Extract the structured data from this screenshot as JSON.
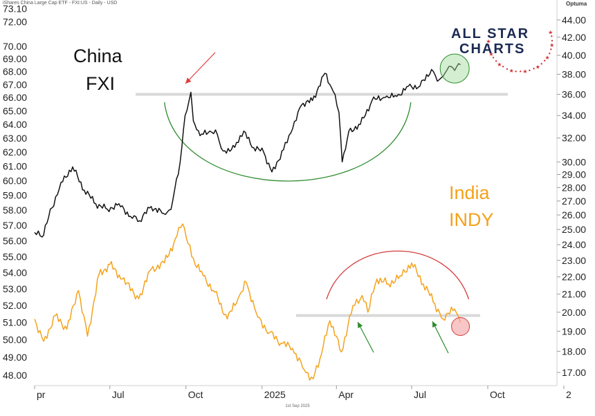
{
  "header": {
    "text": "iShares China Large Cap ETF - FXI:US - Daily - USD"
  },
  "footer": {
    "date": "1st Sep 2025"
  },
  "optuma": {
    "label": "Optuma"
  },
  "brand": {
    "line1": "ALL STAR",
    "line2": "CHARTS"
  },
  "labels": {
    "china_1": "China",
    "china_2": "FXI",
    "india_1": "India",
    "india_2": "INDY"
  },
  "colors": {
    "fxi": "#111111",
    "indy": "#f4a21b",
    "arc_green": "#2e8b2e",
    "arc_red": "#d43a3a",
    "level_line": "#d9d9d9",
    "arrow_red": "#e23b3b",
    "arrow_green": "#2e8b2e",
    "circle_green": "#9ed99a",
    "circle_red": "#f2a0a0",
    "brand_stars": "#d32f2f"
  },
  "chart_data": {
    "type": "line",
    "x_axis": {
      "ticks": [
        "pr",
        "Jul",
        "Oct",
        "2025",
        "Apr",
        "Jul",
        "Oct",
        "2"
      ],
      "range": [
        "2024-04-01",
        "2025-10-31"
      ]
    },
    "left_axis": {
      "label": "",
      "ticks": [
        "73.10",
        "72.00",
        "70.00",
        "69.00",
        "68.00",
        "67.00",
        "66.00",
        "65.00",
        "64.00",
        "63.00",
        "62.00",
        "61.00",
        "60.00",
        "59.00",
        "58.00",
        "57.00",
        "56.00",
        "55.00",
        "54.00",
        "53.00",
        "52.00",
        "51.00",
        "50.00",
        "49.00",
        "48.00"
      ]
    },
    "right_axis": {
      "label": "",
      "ticks": [
        "44.00",
        "42.00",
        "40.00",
        "38.00",
        "36.00",
        "34.00",
        "32.00",
        "30.00",
        "29.00",
        "28.00",
        "27.00",
        "26.00",
        "25.00",
        "24.00",
        "23.00",
        "22.00",
        "21.00",
        "20.00",
        "19.00",
        "18.00",
        "17.00"
      ]
    },
    "series": [
      {
        "name": "FXI",
        "axis": "right",
        "points": [
          [
            "2024-04-01",
            24.8
          ],
          [
            "2024-04-10",
            24.5
          ],
          [
            "2024-04-22",
            26.5
          ],
          [
            "2024-05-03",
            28.4
          ],
          [
            "2024-05-17",
            29.6
          ],
          [
            "2024-05-31",
            27.8
          ],
          [
            "2024-06-14",
            26.8
          ],
          [
            "2024-06-28",
            26.4
          ],
          [
            "2024-07-12",
            26.8
          ],
          [
            "2024-07-26",
            25.9
          ],
          [
            "2024-08-06",
            25.6
          ],
          [
            "2024-08-20",
            26.6
          ],
          [
            "2024-09-04",
            26.1
          ],
          [
            "2024-09-13",
            26.4
          ],
          [
            "2024-09-24",
            30.0
          ],
          [
            "2024-09-30",
            34.0
          ],
          [
            "2024-10-07",
            36.2
          ],
          [
            "2024-10-10",
            33.5
          ],
          [
            "2024-10-18",
            32.2
          ],
          [
            "2024-10-30",
            32.6
          ],
          [
            "2024-11-08",
            32.3
          ],
          [
            "2024-11-15",
            30.9
          ],
          [
            "2024-11-29",
            31.2
          ],
          [
            "2024-12-10",
            32.6
          ],
          [
            "2024-12-20",
            31.2
          ],
          [
            "2025-01-03",
            30.8
          ],
          [
            "2025-01-13",
            29.2
          ],
          [
            "2025-01-27",
            31.0
          ],
          [
            "2025-02-07",
            32.8
          ],
          [
            "2025-02-18",
            35.0
          ],
          [
            "2025-03-03",
            35.4
          ],
          [
            "2025-03-18",
            38.1
          ],
          [
            "2025-03-28",
            36.3
          ],
          [
            "2025-04-04",
            34.3
          ],
          [
            "2025-04-08",
            30.0
          ],
          [
            "2025-04-16",
            32.6
          ],
          [
            "2025-04-30",
            33.2
          ],
          [
            "2025-05-14",
            35.4
          ],
          [
            "2025-05-30",
            35.7
          ],
          [
            "2025-06-13",
            35.8
          ],
          [
            "2025-06-27",
            36.8
          ],
          [
            "2025-07-11",
            36.8
          ],
          [
            "2025-07-25",
            38.5
          ],
          [
            "2025-08-01",
            37.3
          ],
          [
            "2025-08-08",
            37.8
          ],
          [
            "2025-08-15",
            38.8
          ],
          [
            "2025-08-22",
            38.4
          ],
          [
            "2025-08-29",
            39.0
          ]
        ]
      },
      {
        "name": "INDY",
        "axis": "left",
        "points": [
          [
            "2024-04-01",
            51.2
          ],
          [
            "2024-04-12",
            49.9
          ],
          [
            "2024-04-26",
            51.4
          ],
          [
            "2024-05-10",
            50.6
          ],
          [
            "2024-05-24",
            52.9
          ],
          [
            "2024-06-04",
            50.2
          ],
          [
            "2024-06-18",
            53.9
          ],
          [
            "2024-07-01",
            54.5
          ],
          [
            "2024-07-16",
            53.6
          ],
          [
            "2024-08-05",
            52.4
          ],
          [
            "2024-08-20",
            54.2
          ],
          [
            "2024-09-05",
            54.6
          ],
          [
            "2024-09-20",
            56.3
          ],
          [
            "2024-09-27",
            57.1
          ],
          [
            "2024-10-08",
            55.0
          ],
          [
            "2024-10-22",
            53.8
          ],
          [
            "2024-11-05",
            52.8
          ],
          [
            "2024-11-20",
            51.2
          ],
          [
            "2024-12-03",
            52.4
          ],
          [
            "2024-12-13",
            53.4
          ],
          [
            "2024-12-27",
            51.3
          ],
          [
            "2025-01-10",
            50.4
          ],
          [
            "2025-01-24",
            49.8
          ],
          [
            "2025-02-07",
            49.5
          ],
          [
            "2025-02-21",
            48.3
          ],
          [
            "2025-03-04",
            47.8
          ],
          [
            "2025-03-14",
            49.2
          ],
          [
            "2025-03-24",
            51.1
          ],
          [
            "2025-04-07",
            49.3
          ],
          [
            "2025-04-21",
            52.0
          ],
          [
            "2025-05-02",
            52.6
          ],
          [
            "2025-05-09",
            51.6
          ],
          [
            "2025-05-20",
            53.6
          ],
          [
            "2025-06-03",
            53.3
          ],
          [
            "2025-06-17",
            53.8
          ],
          [
            "2025-07-01",
            54.6
          ],
          [
            "2025-07-15",
            53.3
          ],
          [
            "2025-07-29",
            52.1
          ],
          [
            "2025-08-08",
            51.2
          ],
          [
            "2025-08-18",
            51.9
          ],
          [
            "2025-08-26",
            51.4
          ],
          [
            "2025-08-29",
            51.0
          ]
        ]
      }
    ],
    "annotations": {
      "fxi_resistance": 36.0,
      "indy_support": 51.4,
      "fxi_base_start": "2024-09-05",
      "fxi_base_end": "2025-06-30",
      "indy_top_start": "2025-03-20",
      "indy_top_end": "2025-09-08"
    }
  }
}
